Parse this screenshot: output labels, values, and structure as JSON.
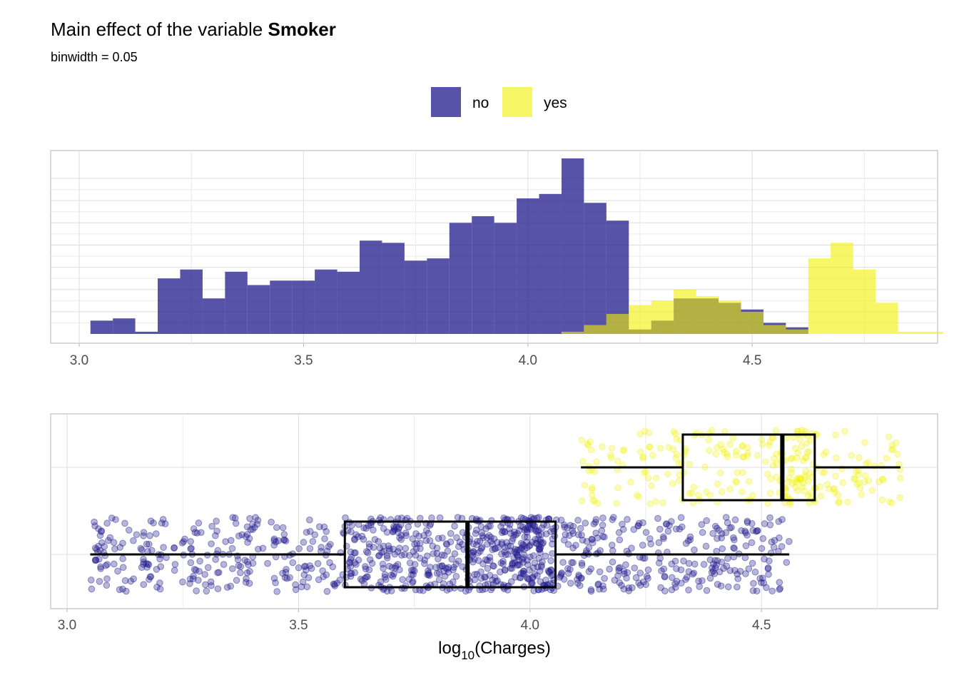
{
  "title_prefix": "Main effect of the variable ",
  "title_var": "Smoker",
  "subtitle": "binwidth = 0.05",
  "legend": [
    {
      "label": "no",
      "color": "#1f1a8c"
    },
    {
      "label": "yes",
      "color": "#f0f000"
    }
  ],
  "xlabel_main": "log",
  "xlabel_sub": "10",
  "xlabel_rest": "(Charges)",
  "chart_data": [
    {
      "type": "histogram",
      "binwidth": 0.05,
      "xlim": [
        2.97,
        4.87
      ],
      "xticks": [
        "3.0",
        "3.5",
        "4.0",
        "4.5"
      ],
      "ylim": [
        0,
        80
      ],
      "series": [
        {
          "name": "no",
          "color": "#1f1a8c",
          "bins": [
            {
              "x0": 3.025,
              "count": 6
            },
            {
              "x0": 3.075,
              "count": 7
            },
            {
              "x0": 3.125,
              "count": 1
            },
            {
              "x0": 3.175,
              "count": 25
            },
            {
              "x0": 3.225,
              "count": 29
            },
            {
              "x0": 3.275,
              "count": 16
            },
            {
              "x0": 3.325,
              "count": 28
            },
            {
              "x0": 3.375,
              "count": 22
            },
            {
              "x0": 3.425,
              "count": 24
            },
            {
              "x0": 3.475,
              "count": 24
            },
            {
              "x0": 3.525,
              "count": 29
            },
            {
              "x0": 3.575,
              "count": 28
            },
            {
              "x0": 3.625,
              "count": 42
            },
            {
              "x0": 3.675,
              "count": 41
            },
            {
              "x0": 3.725,
              "count": 33
            },
            {
              "x0": 3.775,
              "count": 34
            },
            {
              "x0": 3.825,
              "count": 50
            },
            {
              "x0": 3.875,
              "count": 53
            },
            {
              "x0": 3.925,
              "count": 50
            },
            {
              "x0": 3.975,
              "count": 61
            },
            {
              "x0": 4.025,
              "count": 63
            },
            {
              "x0": 4.075,
              "count": 79
            },
            {
              "x0": 4.125,
              "count": 59
            },
            {
              "x0": 4.175,
              "count": 51
            },
            {
              "x0": 4.225,
              "count": 2
            },
            {
              "x0": 4.275,
              "count": 6
            },
            {
              "x0": 4.325,
              "count": 16
            },
            {
              "x0": 4.375,
              "count": 16
            },
            {
              "x0": 4.425,
              "count": 14
            },
            {
              "x0": 4.475,
              "count": 11
            },
            {
              "x0": 4.525,
              "count": 5
            },
            {
              "x0": 4.575,
              "count": 3
            }
          ]
        },
        {
          "name": "yes",
          "color": "#f0f000",
          "bins": [
            {
              "x0": 4.075,
              "count": 1
            },
            {
              "x0": 4.125,
              "count": 4
            },
            {
              "x0": 4.175,
              "count": 9
            },
            {
              "x0": 4.225,
              "count": 13
            },
            {
              "x0": 4.275,
              "count": 15
            },
            {
              "x0": 4.325,
              "count": 20
            },
            {
              "x0": 4.375,
              "count": 17
            },
            {
              "x0": 4.425,
              "count": 15
            },
            {
              "x0": 4.475,
              "count": 10
            },
            {
              "x0": 4.525,
              "count": 4
            },
            {
              "x0": 4.575,
              "count": 2
            },
            {
              "x0": 4.625,
              "count": 34
            },
            {
              "x0": 4.675,
              "count": 41
            },
            {
              "x0": 4.725,
              "count": 29
            },
            {
              "x0": 4.775,
              "count": 14
            },
            {
              "x0": 4.825,
              "count": 1
            },
            {
              "x0": 4.875,
              "count": 1
            }
          ]
        }
      ]
    },
    {
      "type": "boxplot",
      "xlim": [
        2.97,
        4.87
      ],
      "xticks": [
        "3.0",
        "3.5",
        "4.0",
        "4.5"
      ],
      "xlabel": "log10(Charges)",
      "groups": [
        {
          "name": "no",
          "color": "#1f1a8c",
          "n_points": 1064,
          "whisker_low": 3.05,
          "q1": 3.6,
          "median": 3.865,
          "q3": 4.055,
          "whisker_high": 4.56,
          "outliers": []
        },
        {
          "name": "yes",
          "color": "#f0f000",
          "n_points": 274,
          "whisker_low": 4.11,
          "q1": 4.33,
          "median": 4.545,
          "q3": 4.615,
          "whisker_high": 4.8,
          "outliers": []
        }
      ]
    }
  ]
}
